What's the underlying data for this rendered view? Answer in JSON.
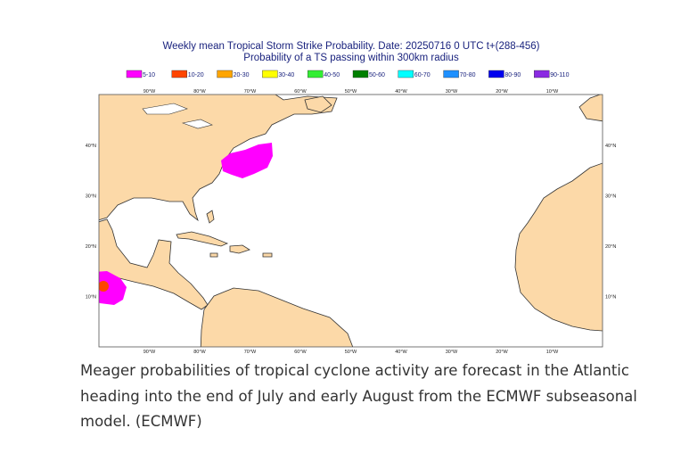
{
  "map": {
    "title": "Weekly mean Tropical Storm Strike Probability. Date: 20250716  0 UTC   t+(288-456)",
    "subtitle": "Probability of a TS passing within  300km radius",
    "legend": [
      {
        "label": "5-10",
        "color": "#ff00ff"
      },
      {
        "label": "10-20",
        "color": "#ff4500"
      },
      {
        "label": "20-30",
        "color": "#ffa500"
      },
      {
        "label": "30-40",
        "color": "#ffff00"
      },
      {
        "label": "40-50",
        "color": "#33ee33"
      },
      {
        "label": "50-60",
        "color": "#008000"
      },
      {
        "label": "60-70",
        "color": "#00ffff"
      },
      {
        "label": "70-80",
        "color": "#1e90ff"
      },
      {
        "label": "80-90",
        "color": "#0000ee"
      },
      {
        "label": "90-110",
        "color": "#8a2be2"
      }
    ],
    "lon_labels": [
      "90°W",
      "80°W",
      "70°W",
      "60°W",
      "50°W",
      "40°W",
      "30°W",
      "20°W",
      "10°W"
    ],
    "lat_labels": [
      "40°N",
      "30°N",
      "20°N",
      "10°N"
    ]
  },
  "caption_lines": [
    "Meager probabilities of tropical cyclone activity are forecast in the Atlantic",
    "heading into the end of July and early August from the ECMWF subseasonal",
    "model. (ECMWF)"
  ]
}
